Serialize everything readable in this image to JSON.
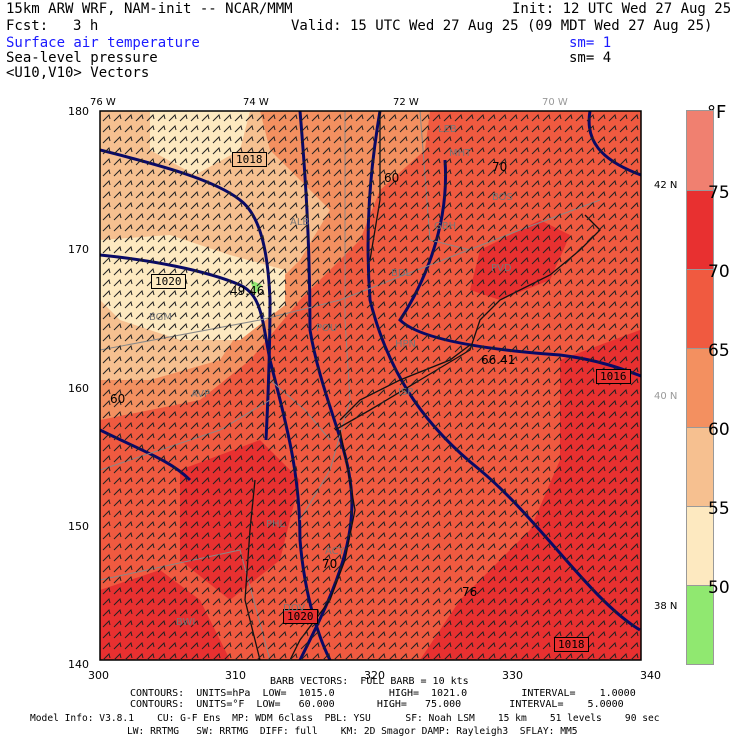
{
  "header": {
    "model": "15km ARW WRF, NAM-init -- NCAR/MMM",
    "init": "Init: 12 UTC Wed 27 Aug 25",
    "fcst_label": "Fcst:",
    "fcst_value": "3 h",
    "valid": "Valid: 15 UTC Wed 27 Aug 25 (09 MDT Wed 27 Aug 25)",
    "fields": [
      {
        "name": "Surface air temperature",
        "sm": "sm= 1"
      },
      {
        "name": "Sea-level pressure",
        "sm": "sm= 4"
      },
      {
        "name": "<U10,V10> Vectors",
        "sm": ""
      }
    ]
  },
  "axes": {
    "top_lon": [
      "76 W",
      "74 W",
      "72 W",
      "70 W"
    ],
    "left_y": [
      "180",
      "170",
      "160",
      "150",
      "140"
    ],
    "bottom_x": [
      "300",
      "310",
      "320",
      "330",
      "340"
    ],
    "right_lat": [
      "42 N",
      "40 N",
      "38 N"
    ]
  },
  "map_labels": {
    "stations": [
      "BGM",
      "ALB",
      "POU",
      "AVP",
      "PHL",
      "ACY",
      "DOV",
      "ISP",
      "HPN",
      "BDL",
      "GBH",
      "PVD",
      "BOS",
      "MHT",
      "LEB",
      "BWI"
    ],
    "values": [
      "49.46",
      "66.41",
      "60",
      "60",
      "70",
      "70",
      "76"
    ],
    "isobars": [
      "1018",
      "1020",
      "1016",
      "1018",
      "1020"
    ]
  },
  "colorbar": {
    "unit": "°F",
    "labels": [
      "75",
      "70",
      "65",
      "60",
      "55",
      "50"
    ],
    "colors": [
      "#f08070",
      "#e83030",
      "#f05a40",
      "#f39060",
      "#f6c090",
      "#fde9c0",
      "#eefbd0",
      "#90e870"
    ]
  },
  "footer": {
    "barb": "BARB VECTORS:  FULL BARB = 10 kts",
    "contours1": "CONTOURS:  UNITS=hPa  LOW=  1015.0         HIGH=  1021.0         INTERVAL=    1.0000",
    "contours2": "CONTOURS:  UNITS=°F  LOW=   60.000       HIGH=   75.000        INTERVAL=    5.0000",
    "model_info1": "Model Info: V3.8.1    CU: G-F Ens  MP: WDM 6class  PBL: YSU      SF: Noah LSM    15 km    51 levels    90 sec",
    "model_info2": "LW: RRTMG   SW: RRTMG  DIFF: full    KM: 2D Smagor DAMP: Rayleigh3  SFLAY: MM5"
  },
  "colors": {
    "field_text": "#1a1aff",
    "isobar": "#0a0a66",
    "land_warm": "#f05a40",
    "land_hot": "#e83030",
    "cool_mid": "#f6c090",
    "cool_low": "#fde9c0",
    "mild": "#f39060"
  }
}
